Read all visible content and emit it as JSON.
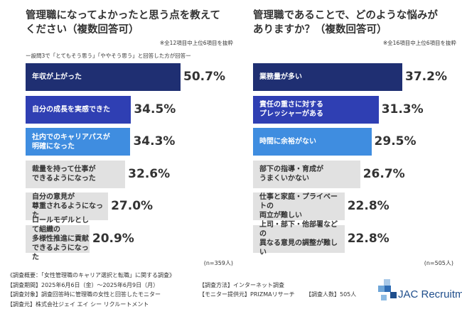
{
  "colors": {
    "navy": "#1f2f72",
    "blue": "#2f3fb3",
    "sky": "#3f8de0",
    "gray": "#e1e1e1"
  },
  "left_panel": {
    "title_line1": "管理職になってよかったと思う点を教えて",
    "title_line2": "ください（複数回答可）",
    "note1": "※全12項目中上位6項目を抜粋",
    "note2": "ー設問3で「とてもそう思う」「ややそう思う」と回答した方が回答ー",
    "n_label": "(n=359人)"
  },
  "right_panel": {
    "title_line1": "管理職であることで、どのような悩みが",
    "title_line2": "ありますか？（複数回答可）",
    "note1": "※全16項目中上位6項目を抜粋",
    "n_label": "(n=505人)"
  },
  "chart_data": [
    {
      "type": "bar",
      "orientation": "horizontal",
      "title": "管理職になってよかったと思う点を教えてください（複数回答可）",
      "categories": [
        "年収が上がった",
        "自分の成長を実感できた",
        "社内でのキャリアパスが\n明確になった",
        "裁量を持って仕事が\nできるようになった",
        "自分の意見が\n尊重されるようになった",
        "ロールモデルとして組織の\n多様性推進に貢献できるようになった"
      ],
      "values": [
        50.7,
        34.5,
        34.3,
        32.6,
        27.0,
        20.9
      ],
      "value_labels": [
        "50.7%",
        "34.5%",
        "34.3%",
        "32.6%",
        "27.0%",
        "20.9%"
      ],
      "colors": [
        "#1f2f72",
        "#2f3fb3",
        "#3f8de0",
        "#e1e1e1",
        "#e1e1e1",
        "#e1e1e1"
      ],
      "xlim": [
        0,
        50.7
      ]
    },
    {
      "type": "bar",
      "orientation": "horizontal",
      "title": "管理職であることで、どのような悩みがありますか？（複数回答可）",
      "categories": [
        "業務量が多い",
        "責任の重さに対する\nプレッシャーがある",
        "時間に余裕がない",
        "部下の指導・育成が\nうまくいかない",
        "仕事と家庭・プライベートの\n両立が難しい",
        "上司・部下・他部署などの\n異なる意見の調整が難しい"
      ],
      "values": [
        37.2,
        31.3,
        29.5,
        26.7,
        22.8,
        22.8
      ],
      "value_labels": [
        "37.2%",
        "31.3%",
        "29.5%",
        "26.7%",
        "22.8%",
        "22.8%"
      ],
      "colors": [
        "#1f2f72",
        "#2f3fb3",
        "#3f8de0",
        "#e1e1e1",
        "#e1e1e1",
        "#e1e1e1"
      ],
      "xlim": [
        0,
        37.2
      ]
    }
  ],
  "footer": {
    "line1": "《調査概要：「女性管理職のキャリア選択と転職」に関する調査》",
    "period": "【調査期間】2025年6月6日（金）～2025年6月9日（月）",
    "method": "【調査方法】インターネット調査",
    "target": "【調査対象】調査回答時に管理職の女性と回答したモニター",
    "provider": "【モニター提供元】PRIZMAリサーチ",
    "count": "【調査人数】505人",
    "org": "【調査元】株式会社ジェイ エイ シー リクルートメント"
  },
  "logo": {
    "text": "JAC Recruitment"
  }
}
